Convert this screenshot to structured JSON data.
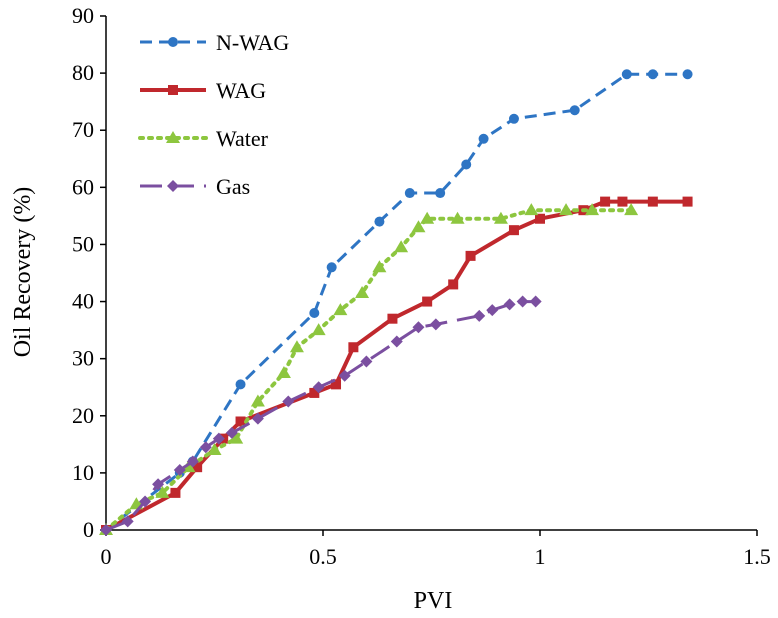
{
  "chart_data": {
    "type": "line",
    "title": "",
    "xlabel": "PVI",
    "ylabel": "Oil Recovery (%)",
    "xlim": [
      0,
      1.5
    ],
    "ylim": [
      0,
      90
    ],
    "x_ticks": [
      0,
      0.5,
      1,
      1.5
    ],
    "x_tick_labels": [
      "0",
      "0.5",
      "1",
      "1.5"
    ],
    "y_ticks": [
      0,
      10,
      20,
      30,
      40,
      50,
      60,
      70,
      80,
      90
    ],
    "y_tick_labels": [
      "0",
      "10",
      "20",
      "30",
      "40",
      "50",
      "60",
      "70",
      "80",
      "90"
    ],
    "grid": false,
    "legend_position": "top-left",
    "series": [
      {
        "name": "N-WAG",
        "color": "#2e75c4",
        "dash": "dashed",
        "marker": "circle",
        "x": [
          0,
          0.17,
          0.2,
          0.31,
          0.48,
          0.52,
          0.63,
          0.7,
          0.77,
          0.83,
          0.87,
          0.94,
          1.08,
          1.2,
          1.26,
          1.34
        ],
        "y": [
          0,
          10,
          12,
          25.5,
          38,
          46,
          54,
          59,
          59,
          64,
          68.5,
          72,
          73.5,
          79.8,
          79.8,
          79.8
        ]
      },
      {
        "name": "WAG",
        "color": "#c0282d",
        "dash": "solid",
        "marker": "square",
        "x": [
          0,
          0.16,
          0.21,
          0.27,
          0.31,
          0.48,
          0.53,
          0.57,
          0.66,
          0.74,
          0.8,
          0.84,
          0.94,
          1.0,
          1.1,
          1.15,
          1.19,
          1.26,
          1.34
        ],
        "y": [
          0,
          6.5,
          11,
          16,
          19,
          24,
          25.5,
          32,
          37,
          40,
          43,
          48,
          52.5,
          54.5,
          56,
          57.5,
          57.5,
          57.5,
          57.5
        ]
      },
      {
        "name": "Water",
        "color": "#8dc63f",
        "dash": "dotted",
        "marker": "triangle",
        "x": [
          0,
          0.07,
          0.13,
          0.19,
          0.25,
          0.3,
          0.35,
          0.41,
          0.44,
          0.49,
          0.54,
          0.59,
          0.63,
          0.68,
          0.72,
          0.74,
          0.81,
          0.91,
          0.98,
          1.06,
          1.12,
          1.21
        ],
        "y": [
          0,
          4.5,
          6.5,
          11,
          14,
          16,
          22.5,
          27.5,
          32,
          35,
          38.5,
          41.5,
          46,
          49.5,
          53,
          54.5,
          54.5,
          54.5,
          56,
          56,
          56,
          56
        ]
      },
      {
        "name": "Gas",
        "color": "#7b4fa0",
        "dash": "long-dash",
        "marker": "diamond",
        "x": [
          0,
          0.05,
          0.09,
          0.12,
          0.17,
          0.2,
          0.23,
          0.26,
          0.29,
          0.35,
          0.42,
          0.49,
          0.55,
          0.6,
          0.67,
          0.72,
          0.76,
          0.86,
          0.89,
          0.93,
          0.96,
          0.99
        ],
        "y": [
          0,
          1.5,
          5,
          8,
          10.5,
          12,
          14.5,
          16,
          17,
          19.5,
          22.5,
          25,
          27,
          29.5,
          33,
          35.5,
          36,
          37.5,
          38.5,
          39.5,
          40,
          40
        ]
      }
    ]
  }
}
